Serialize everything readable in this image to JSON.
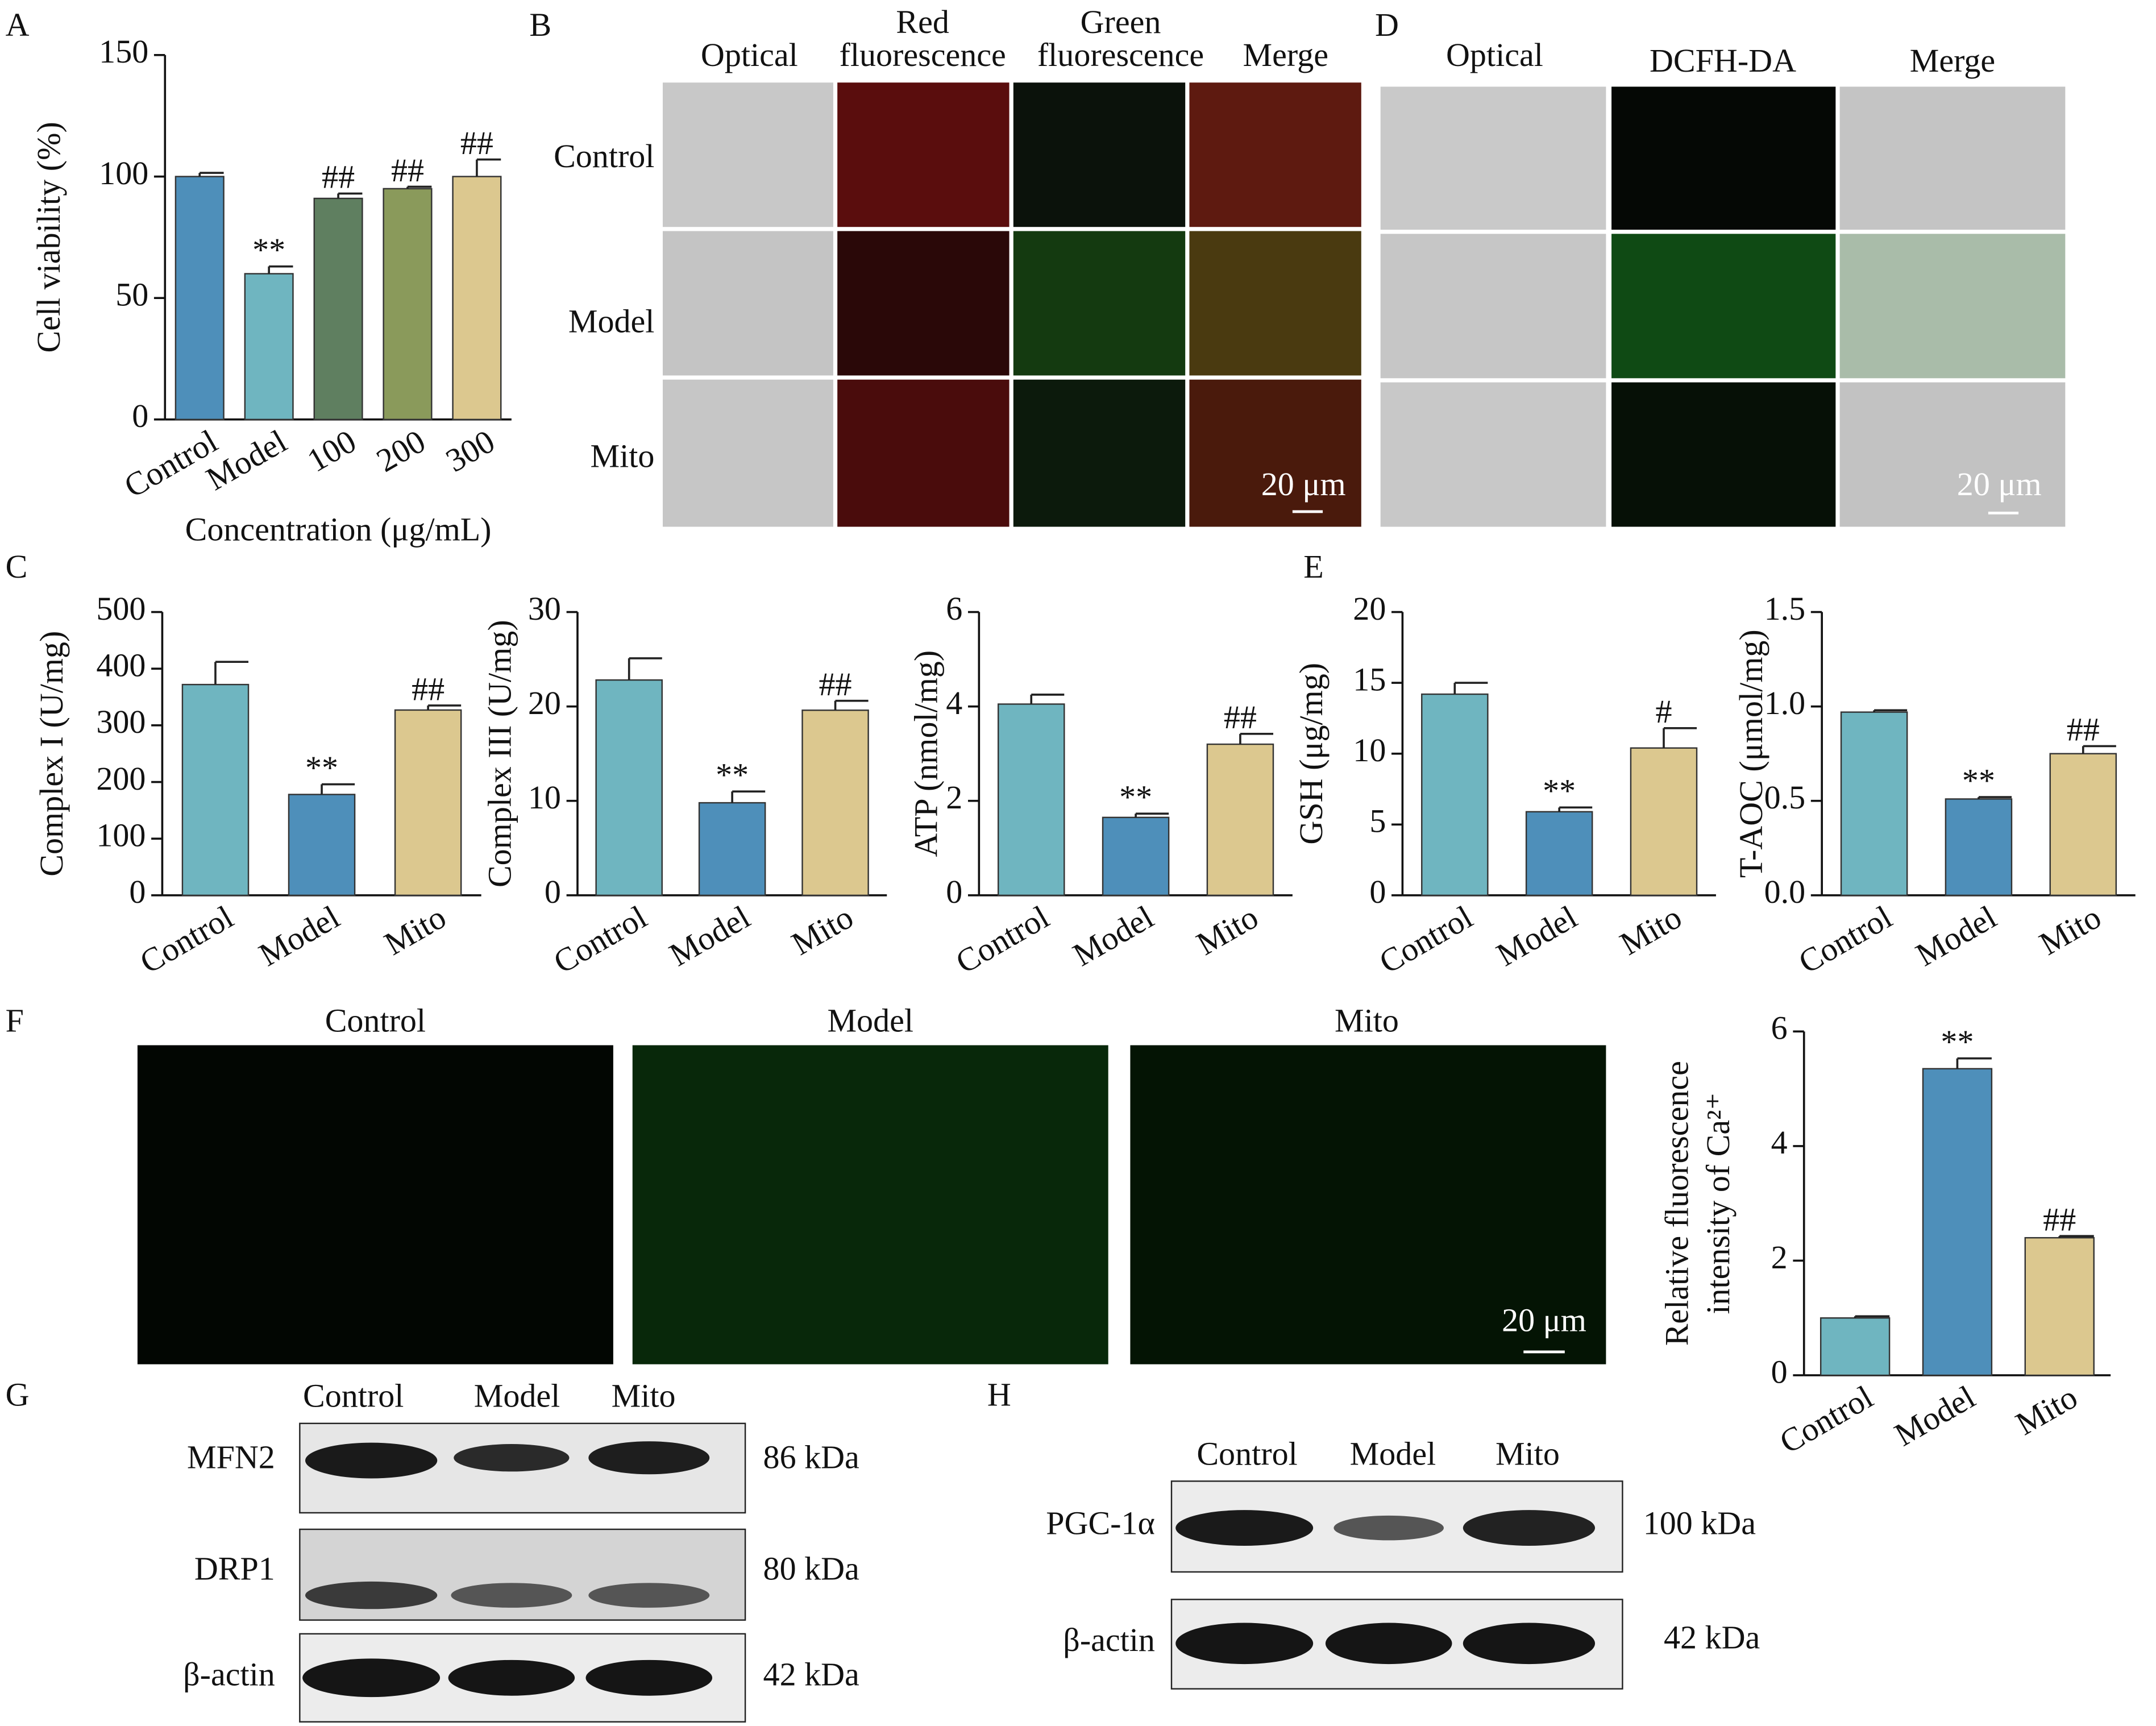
{
  "panel_labels": [
    "A",
    "B",
    "C",
    "D",
    "E",
    "F",
    "G",
    "H"
  ],
  "chart_data": [
    {
      "type": "bar",
      "ylabel": "Cell viability (%)",
      "xlabel": "Concentration (μg/mL)",
      "categories": [
        "Control",
        "Model",
        "100",
        "200",
        "300"
      ],
      "values": [
        100,
        60,
        91,
        95,
        100
      ],
      "errors": [
        1.5,
        3,
        2,
        0.8,
        7
      ],
      "annotations": [
        null,
        "**",
        "##",
        "##",
        "##"
      ],
      "colors": [
        "#4e8fba",
        "#6fb5c0",
        "#5f7f60",
        "#8a9a5b",
        "#dcc88f"
      ],
      "ylim": [
        0,
        150
      ],
      "yticks": [
        0,
        50,
        100,
        150
      ]
    },
    {
      "type": "bar",
      "ylabel": "Complex I (U/mg)",
      "categories": [
        "Control",
        "Model",
        "Mito"
      ],
      "values": [
        372,
        178,
        327
      ],
      "errors": [
        40,
        18,
        8
      ],
      "annotations": [
        null,
        "**",
        "##"
      ],
      "colors": [
        "#6fb5c0",
        "#4e8fba",
        "#dcc88f"
      ],
      "ylim": [
        0,
        500
      ],
      "yticks": [
        0,
        100,
        200,
        300,
        400,
        500
      ]
    },
    {
      "type": "bar",
      "ylabel": "Complex III (U/mg)",
      "categories": [
        "Control",
        "Model",
        "Mito"
      ],
      "values": [
        22.8,
        9.8,
        19.6
      ],
      "errors": [
        2.3,
        1.2,
        1
      ],
      "annotations": [
        null,
        "**",
        "##"
      ],
      "colors": [
        "#6fb5c0",
        "#4e8fba",
        "#dcc88f"
      ],
      "ylim": [
        0,
        30
      ],
      "yticks": [
        0,
        10,
        20,
        30
      ]
    },
    {
      "type": "bar",
      "ylabel": "ATP (nmol/mg)",
      "categories": [
        "Control",
        "Model",
        "Mito"
      ],
      "values": [
        4.05,
        1.65,
        3.2
      ],
      "errors": [
        0.2,
        0.08,
        0.22
      ],
      "annotations": [
        null,
        "**",
        "##"
      ],
      "colors": [
        "#6fb5c0",
        "#4e8fba",
        "#dcc88f"
      ],
      "ylim": [
        0,
        6
      ],
      "yticks": [
        0,
        2,
        4,
        6
      ]
    },
    {
      "type": "bar",
      "ylabel": "GSH (μg/mg)",
      "categories": [
        "Control",
        "Model",
        "Mito"
      ],
      "values": [
        14.2,
        5.9,
        10.4
      ],
      "errors": [
        0.8,
        0.3,
        1.4
      ],
      "annotations": [
        null,
        "**",
        "#"
      ],
      "colors": [
        "#6fb5c0",
        "#4e8fba",
        "#dcc88f"
      ],
      "ylim": [
        0,
        20
      ],
      "yticks": [
        0,
        5,
        10,
        15,
        20
      ]
    },
    {
      "type": "bar",
      "ylabel": "T-AOC (μmol/mg)",
      "categories": [
        "Control",
        "Model",
        "Mito"
      ],
      "values": [
        0.97,
        0.51,
        0.75
      ],
      "errors": [
        0.01,
        0.01,
        0.04
      ],
      "annotations": [
        null,
        "**",
        "##"
      ],
      "colors": [
        "#6fb5c0",
        "#4e8fba",
        "#dcc88f"
      ],
      "ylim": [
        0,
        1.5
      ],
      "yticks": [
        {
          "value": 0,
          "label": "0.0"
        },
        0.5,
        {
          "value": 1,
          "label": "1.0"
        },
        1.5
      ]
    },
    {
      "type": "bar",
      "ylabel": [
        "Relative fluorescence",
        "intensity of Ca²⁺"
      ],
      "categories": [
        "Control",
        "Model",
        "Mito"
      ],
      "values": [
        1,
        5.35,
        2.4
      ],
      "errors": [
        0.03,
        0.18,
        0.03
      ],
      "annotations": [
        null,
        "**",
        "##"
      ],
      "colors": [
        "#6fb5c0",
        "#4e8fba",
        "#dcc88f"
      ],
      "ylim": [
        0,
        6
      ],
      "yticks": [
        0,
        2,
        4,
        6
      ]
    }
  ],
  "panel_b": {
    "columns": [
      [
        "Optical"
      ],
      [
        "Red",
        "fluorescence"
      ],
      [
        "Green",
        "fluorescence"
      ],
      [
        "Merge"
      ]
    ],
    "rows": [
      "Control",
      "Model",
      "Mito"
    ],
    "scale_bar": "20 μm"
  },
  "panel_d": {
    "columns": [
      "Optical",
      "DCFH-DA",
      "Merge"
    ],
    "scale_bar": "20 μm"
  },
  "panel_f": {
    "columns": [
      "Control",
      "Model",
      "Mito"
    ],
    "scale_bar": "20 μm"
  },
  "panel_g": {
    "lanes": [
      "Control",
      "Model",
      "Mito"
    ],
    "rows": [
      "MFN2",
      "DRP1",
      "β-actin"
    ],
    "sizes": [
      "86 kDa",
      "80 kDa",
      "42 kDa"
    ]
  },
  "panel_h": {
    "lanes": [
      "Control",
      "Model",
      "Mito"
    ],
    "rows": [
      "PGC-1α",
      "β-actin"
    ],
    "sizes": [
      "100 kDa",
      "42 kDa"
    ]
  }
}
